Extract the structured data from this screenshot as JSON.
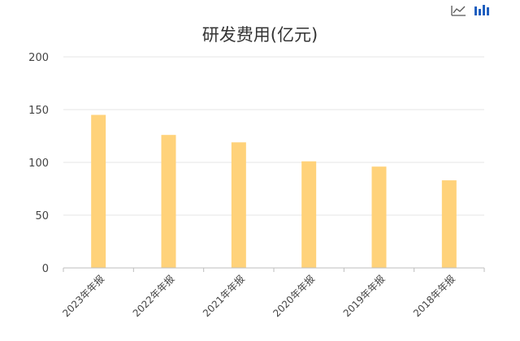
{
  "toolbar": {
    "icons": [
      "line-chart-icon",
      "bar-chart-icon"
    ],
    "accent": "#1f5fbf"
  },
  "chart_data": {
    "type": "bar",
    "title": "研发费用(亿元)",
    "categories": [
      "2023年年报",
      "2022年年报",
      "2021年年报",
      "2020年年报",
      "2019年年报",
      "2018年年报"
    ],
    "series": [
      {
        "values": [
          145,
          126,
          119,
          101,
          96,
          83
        ],
        "color": "#ffd27a"
      }
    ],
    "ylim": [
      0,
      200
    ],
    "yticks": [
      0,
      50,
      100,
      150,
      200
    ],
    "grid": true,
    "legend": "none"
  }
}
